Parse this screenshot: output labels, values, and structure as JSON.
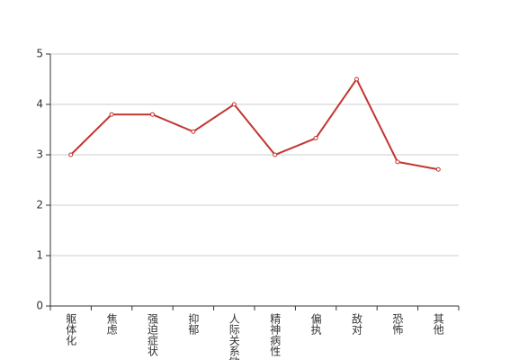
{
  "chart_data": {
    "type": "line",
    "categories": [
      "躯体化",
      "焦虑",
      "强迫症状",
      "抑郁",
      "人际关系敏感",
      "精神病性",
      "偏执",
      "敌对",
      "恐怖",
      "其他"
    ],
    "values": [
      3.0,
      3.8,
      3.8,
      3.46,
      4.0,
      3.0,
      3.33,
      4.5,
      2.86,
      2.71
    ],
    "color": "#c23531",
    "ylim": [
      0,
      5
    ],
    "yticks": [
      0,
      1,
      2,
      3,
      4,
      5
    ],
    "grid": true
  }
}
